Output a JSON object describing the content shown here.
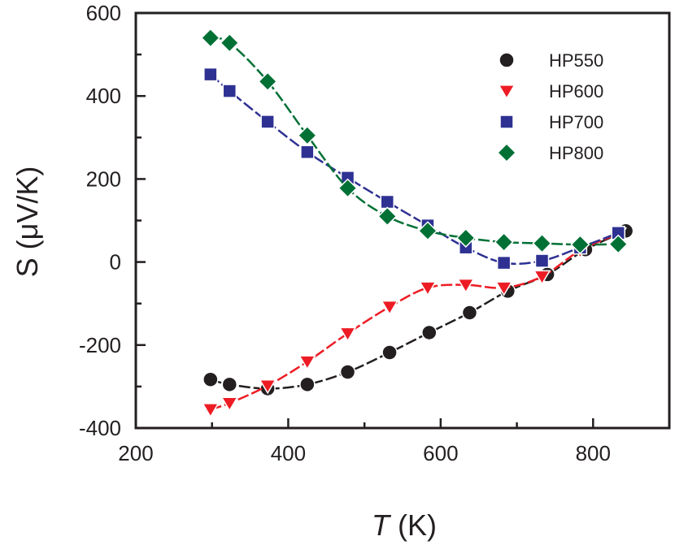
{
  "chart_data": {
    "type": "line",
    "title": "",
    "xlabel_italic": "T",
    "xlabel_unit": " (K)",
    "ylabel": "S (μV/K)",
    "xlim": [
      200,
      900
    ],
    "ylim": [
      -400,
      600
    ],
    "xticks": [
      200,
      400,
      600,
      800
    ],
    "yticks": [
      -400,
      -200,
      0,
      200,
      400,
      600
    ],
    "xticks_minor": [
      300,
      500,
      700
    ],
    "yticks_minor": [
      -300,
      -100,
      100,
      300,
      500
    ],
    "legend_position": "top-right",
    "series": [
      {
        "name": "HP550",
        "marker": "circle",
        "color": "#231f20",
        "x": [
          298,
          323,
          373,
          425,
          478,
          533,
          585,
          638,
          688,
          740,
          790,
          843
        ],
        "y": [
          -283,
          -295,
          -305,
          -295,
          -265,
          -218,
          -170,
          -122,
          -70,
          -30,
          30,
          75
        ]
      },
      {
        "name": "HP600",
        "marker": "triangle-down",
        "color": "#ed1c24",
        "x": [
          298,
          323,
          373,
          425,
          478,
          533,
          583,
          633,
          683,
          733,
          783,
          833
        ],
        "y": [
          -355,
          -340,
          -298,
          -240,
          -172,
          -108,
          -62,
          -55,
          -62,
          -35,
          28,
          68
        ]
      },
      {
        "name": "HP700",
        "marker": "square",
        "color": "#2e3192",
        "x": [
          298,
          323,
          373,
          425,
          478,
          530,
          583,
          633,
          683,
          733,
          783,
          833
        ],
        "y": [
          452,
          412,
          338,
          265,
          203,
          145,
          88,
          35,
          -2,
          3,
          35,
          70
        ]
      },
      {
        "name": "HP800",
        "marker": "diamond",
        "color": "#007035",
        "x": [
          298,
          323,
          373,
          425,
          478,
          530,
          583,
          633,
          683,
          733,
          783,
          833
        ],
        "y": [
          540,
          528,
          435,
          305,
          178,
          110,
          75,
          58,
          48,
          45,
          42,
          43
        ]
      }
    ]
  }
}
